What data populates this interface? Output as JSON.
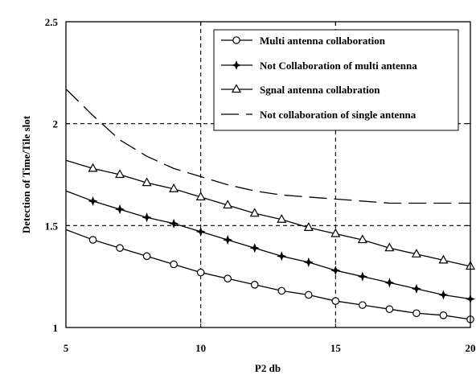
{
  "chart_data": {
    "type": "line",
    "title": "",
    "xlabel": "P2 db",
    "ylabel": "Detection of Time/Tile slot",
    "xlim": [
      5,
      20
    ],
    "ylim": [
      1,
      2.5
    ],
    "xticks": [
      5,
      10,
      15,
      20
    ],
    "yticks": [
      1,
      1.5,
      2,
      2.5
    ],
    "xtick_labels": [
      "5",
      "10",
      "15",
      "20"
    ],
    "ytick_labels": [
      "1",
      "1.5",
      "2",
      "2.5"
    ],
    "grid": "dashed at ticks",
    "legend_position": "top-right",
    "x": [
      5,
      6,
      7,
      8,
      9,
      10,
      11,
      12,
      13,
      14,
      15,
      16,
      17,
      18,
      19,
      20
    ],
    "series": [
      {
        "name": "Multi antenna collaboration",
        "style": "solid",
        "marker": "circle",
        "color": "#000000",
        "values": [
          1.48,
          1.43,
          1.39,
          1.35,
          1.31,
          1.27,
          1.24,
          1.21,
          1.18,
          1.16,
          1.13,
          1.11,
          1.09,
          1.07,
          1.06,
          1.04
        ]
      },
      {
        "name": "Not Collaboration of multi antenna",
        "style": "solid",
        "marker": "star",
        "color": "#000000",
        "values": [
          1.67,
          1.62,
          1.58,
          1.54,
          1.51,
          1.47,
          1.43,
          1.39,
          1.35,
          1.32,
          1.28,
          1.25,
          1.22,
          1.19,
          1.16,
          1.14
        ]
      },
      {
        "name": "Sgnal antenna collabration",
        "style": "solid",
        "marker": "triangle",
        "color": "#000000",
        "values": [
          1.82,
          1.78,
          1.75,
          1.71,
          1.68,
          1.64,
          1.6,
          1.56,
          1.53,
          1.49,
          1.46,
          1.43,
          1.39,
          1.36,
          1.33,
          1.3
        ]
      },
      {
        "name": "Not collaboration of single antenna",
        "style": "dashed",
        "marker": "none",
        "color": "#000000",
        "x": [
          5,
          6,
          7,
          8,
          9,
          10,
          11,
          12,
          13,
          14,
          15,
          16,
          17,
          18,
          19,
          20
        ],
        "values": [
          2.17,
          2.04,
          1.92,
          1.84,
          1.78,
          1.74,
          1.7,
          1.67,
          1.65,
          1.64,
          1.63,
          1.62,
          1.61,
          1.61,
          1.61,
          1.61
        ]
      }
    ]
  }
}
